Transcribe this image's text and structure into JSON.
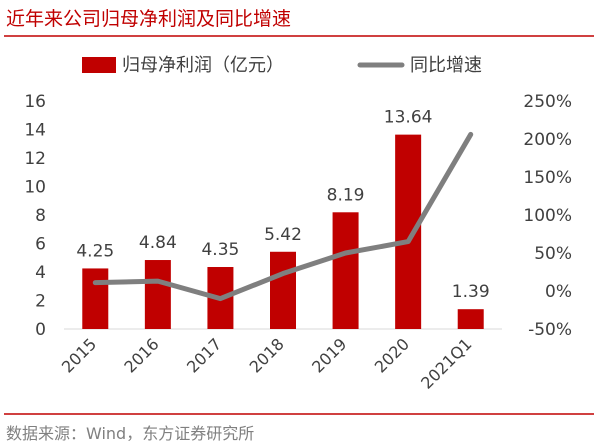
{
  "title": "近年来公司归母净利润及同比增速",
  "source": "数据来源：Wind，东方证券研究所",
  "colors": {
    "title": "#c00000",
    "bar": "#c00000",
    "line": "#7f7f7f",
    "rule": "#c00000",
    "text": "#404040",
    "source": "#808080"
  },
  "chart_data": {
    "type": "bar",
    "categories": [
      "2015",
      "2016",
      "2017",
      "2018",
      "2019",
      "2020",
      "2021Q1"
    ],
    "series": [
      {
        "name": "归母净利润（亿元）",
        "type": "bar",
        "axis": "left",
        "values": [
          4.25,
          4.84,
          4.35,
          5.42,
          8.19,
          13.64,
          1.39
        ],
        "labels": [
          "4.25",
          "4.84",
          "4.35",
          "5.42",
          "8.19",
          "13.64",
          "1.39"
        ]
      },
      {
        "name": "同比增速",
        "type": "line",
        "axis": "right",
        "values": [
          11,
          13,
          -10,
          23,
          50,
          65,
          206
        ]
      }
    ],
    "y_left": {
      "min": 0,
      "max": 16,
      "ticks": [
        "0",
        "2",
        "4",
        "6",
        "8",
        "10",
        "12",
        "14",
        "16"
      ]
    },
    "y_right": {
      "min": -50,
      "max": 250,
      "ticks": [
        "-50%",
        "0%",
        "50%",
        "100%",
        "150%",
        "200%",
        "250%"
      ]
    },
    "legend": "top",
    "grid": false
  }
}
